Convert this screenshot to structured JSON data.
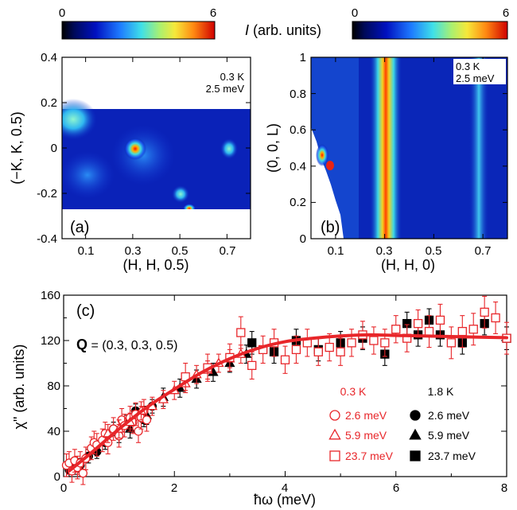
{
  "colorbar": {
    "min_label": "0",
    "max_label": "6",
    "label_italic": "I",
    "label_rest": " (arb. units)"
  },
  "panel_a": {
    "tag": "(a)",
    "note_temp": "0.3 K",
    "note_energy": "2.5 meV",
    "xlabel": "(H, H, 0.5)",
    "ylabel": "(−K, K, 0.5)",
    "xticks": [
      "0.1",
      "0.3",
      "0.5",
      "0.7"
    ],
    "yticks": [
      "-0.4",
      "-0.2",
      "0",
      "0.2",
      "0.4"
    ]
  },
  "panel_b": {
    "tag": "(b)",
    "note_temp": "0.3 K",
    "note_energy": "2.5 meV",
    "xlabel": "(H, H, 0)",
    "ylabel": "(0, 0, L)",
    "xticks": [
      "0.1",
      "0.3",
      "0.5",
      "0.7"
    ],
    "yticks": [
      "0",
      "0.2",
      "0.4",
      "0.6",
      "0.8",
      "1"
    ]
  },
  "panel_c": {
    "tag": "(c)",
    "q_bold": "Q",
    "q_rest": " = (0.3, 0.3, 0.5)",
    "xlabel": "ħω (meV)",
    "ylabel": "χ\" (arb. units)",
    "xticks": [
      "0",
      "2",
      "4",
      "6",
      "8"
    ],
    "yticks": [
      "0",
      "40",
      "80",
      "120",
      "160"
    ],
    "legend": {
      "left_title": "0.3 K",
      "right_title": "1.8 K",
      "entries_left": [
        "2.6 meV",
        "5.9 meV",
        "23.7 meV"
      ],
      "entries_right": [
        "2.6 meV",
        "5.9 meV",
        "23.7 meV"
      ]
    },
    "colors": {
      "open": "#e8262a",
      "filled": "#000000",
      "fit": "#e8262a"
    }
  },
  "chart_data": [
    {
      "type": "heatmap",
      "panel": "(a)",
      "xlabel": "(H, H, 0.5)",
      "ylabel": "(−K, K, 0.5)",
      "xlim": [
        0.0,
        0.8
      ],
      "ylim": [
        -0.4,
        0.4
      ],
      "data_ylim": [
        -0.25,
        0.18
      ],
      "color_range": [
        0,
        6
      ],
      "peaks": [
        {
          "x": 0.3,
          "y": 0.0,
          "intensity": 6
        },
        {
          "x": 0.5,
          "y": -0.2,
          "intensity": 3.5
        },
        {
          "x": 0.54,
          "y": -0.25,
          "intensity": 5
        },
        {
          "x": 0.68,
          "y": 0.0,
          "intensity": 2.5
        },
        {
          "x": 0.02,
          "y": 0.15,
          "intensity": 2.5
        }
      ]
    },
    {
      "type": "heatmap",
      "panel": "(b)",
      "xlabel": "(H, H, 0)",
      "ylabel": "(0, 0, L)",
      "xlim": [
        0.0,
        0.8
      ],
      "ylim": [
        0,
        1
      ],
      "color_range": [
        0,
        6
      ],
      "rods": [
        {
          "x": 0.3,
          "intensity": 6
        },
        {
          "x": 0.7,
          "intensity": 2.5
        }
      ]
    },
    {
      "type": "scatter",
      "panel": "(c)",
      "xlabel": "ħω (meV)",
      "ylabel": "χ\" (arb. units)",
      "xlim": [
        0,
        8
      ],
      "ylim": [
        0,
        160
      ],
      "series": [
        {
          "name": "0.3 K 2.6 meV",
          "marker": "circle-open",
          "color": "#e8262a",
          "x": [
            0.05,
            0.1,
            0.15,
            0.2,
            0.25,
            0.3,
            0.35,
            0.4,
            0.5,
            0.55,
            0.6,
            0.7,
            0.75,
            0.8,
            0.9,
            1.0,
            1.05,
            1.1,
            1.2,
            1.25,
            1.3,
            1.35,
            1.4,
            1.45,
            1.5
          ],
          "y": [
            10,
            12,
            5,
            14,
            8,
            12,
            3,
            16,
            25,
            30,
            28,
            32,
            38,
            30,
            42,
            36,
            50,
            45,
            52,
            48,
            55,
            40,
            52,
            58,
            50
          ],
          "err": [
            10,
            10,
            10,
            10,
            10,
            10,
            10,
            10,
            10,
            10,
            10,
            10,
            10,
            10,
            10,
            10,
            10,
            10,
            10,
            10,
            10,
            10,
            10,
            10,
            10
          ]
        },
        {
          "name": "0.3 K 5.9 meV",
          "marker": "triangle-open",
          "color": "#e8262a",
          "x": [
            0.8,
            1.0,
            1.2,
            1.4,
            1.6,
            1.8,
            2.0,
            2.2,
            2.4,
            2.6,
            2.8,
            3.0,
            3.2
          ],
          "y": [
            38,
            42,
            48,
            58,
            62,
            68,
            76,
            82,
            90,
            94,
            100,
            104,
            108
          ],
          "err": [
            8,
            8,
            8,
            8,
            8,
            8,
            8,
            8,
            8,
            8,
            8,
            8,
            8
          ]
        },
        {
          "name": "0.3 K 23.7 meV",
          "marker": "square-open",
          "color": "#e8262a",
          "x": [
            2.2,
            2.6,
            3.0,
            3.2,
            3.4,
            3.6,
            3.8,
            4.0,
            4.2,
            4.4,
            4.6,
            4.8,
            5.0,
            5.2,
            5.4,
            5.6,
            5.8,
            6.0,
            6.2,
            6.4,
            6.6,
            6.8,
            7.0,
            7.2,
            7.4,
            7.6,
            7.8,
            8.0
          ],
          "y": [
            88,
            96,
            105,
            127,
            98,
            112,
            118,
            103,
            112,
            118,
            110,
            114,
            110,
            118,
            125,
            120,
            118,
            130,
            122,
            135,
            128,
            138,
            118,
            128,
            130,
            145,
            140,
            122
          ],
          "err": [
            12,
            12,
            12,
            14,
            12,
            12,
            12,
            12,
            12,
            12,
            12,
            12,
            12,
            12,
            12,
            12,
            12,
            12,
            12,
            12,
            14,
            14,
            14,
            14,
            14,
            14,
            14,
            14
          ]
        },
        {
          "name": "1.8 K 2.6 meV",
          "marker": "circle-filled",
          "color": "#000000",
          "x": [
            0.1,
            0.2,
            0.3,
            0.45,
            0.6,
            0.75,
            0.9,
            1.0,
            1.15,
            1.3,
            1.45,
            1.6
          ],
          "y": [
            6,
            8,
            10,
            18,
            22,
            30,
            42,
            36,
            48,
            58,
            50,
            62
          ],
          "err": [
            6,
            6,
            6,
            6,
            6,
            6,
            6,
            6,
            6,
            6,
            6,
            6
          ]
        },
        {
          "name": "1.8 K 5.9 meV",
          "marker": "triangle-filled",
          "color": "#000000",
          "x": [
            1.2,
            1.5,
            1.8,
            2.1,
            2.4,
            2.7,
            3.0,
            3.3
          ],
          "y": [
            42,
            54,
            70,
            78,
            86,
            92,
            100,
            108
          ],
          "err": [
            8,
            8,
            8,
            8,
            8,
            8,
            8,
            8
          ]
        },
        {
          "name": "1.8 K 23.7 meV",
          "marker": "square-filled",
          "color": "#000000",
          "x": [
            3.4,
            3.8,
            4.2,
            4.6,
            5.0,
            5.4,
            5.8,
            6.2,
            6.4,
            6.6,
            6.8,
            7.2,
            7.6,
            8.0
          ],
          "y": [
            118,
            110,
            120,
            112,
            118,
            122,
            108,
            135,
            125,
            138,
            125,
            118,
            135,
            122
          ],
          "err": [
            10,
            10,
            10,
            10,
            10,
            10,
            10,
            10,
            10,
            10,
            10,
            10,
            10,
            10
          ]
        }
      ],
      "fit": {
        "name": "fit",
        "x": [
          0.1,
          0.5,
          1,
          1.5,
          2,
          2.5,
          3,
          3.5,
          4,
          4.5,
          5,
          5.5,
          6,
          6.5,
          7,
          7.5,
          8
        ],
        "y": [
          5,
          21,
          42,
          61,
          77,
          92,
          104,
          113,
          119,
          122,
          124,
          125,
          124.5,
          124,
          123.5,
          123,
          122.5
        ]
      }
    }
  ]
}
